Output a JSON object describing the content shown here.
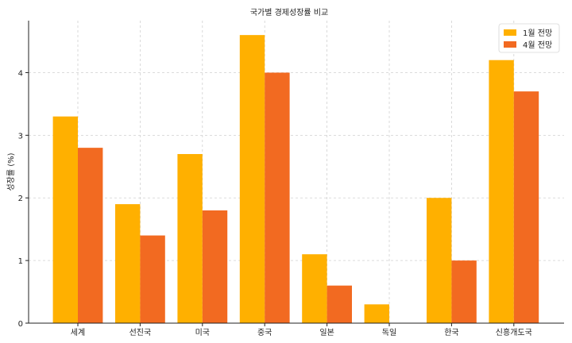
{
  "chart_data": {
    "type": "bar",
    "title": "국가별 경제성장률 비교",
    "xlabel": "",
    "ylabel": "성장률 (%)",
    "categories": [
      "세계",
      "선진국",
      "미국",
      "중국",
      "일본",
      "독일",
      "한국",
      "신흥개도국"
    ],
    "series": [
      {
        "name": "1월 전망",
        "values": [
          3.3,
          1.9,
          2.7,
          4.6,
          1.1,
          0.3,
          2.0,
          4.2
        ]
      },
      {
        "name": "4월 전망",
        "values": [
          2.8,
          1.4,
          1.8,
          4.0,
          0.6,
          0.0,
          1.0,
          3.7
        ]
      }
    ],
    "ylim": [
      0,
      4.83
    ],
    "yticks": [
      0,
      1,
      2,
      3,
      4
    ],
    "grid": true,
    "legend_position": "top-right",
    "colors": [
      "#FFB000",
      "#F26A21"
    ]
  }
}
